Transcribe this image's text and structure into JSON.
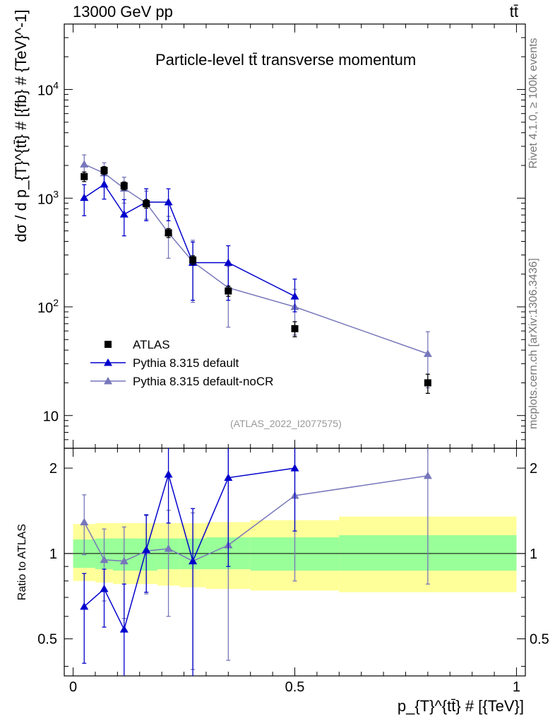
{
  "header": {
    "energy_label": "13000 GeV pp",
    "process_label": "tt̄"
  },
  "side_text": {
    "rivet": "Rivet 4.1.0, ≥ 100k events",
    "mcplots": "mcplots.cern.ch [arXiv:1306.3436]"
  },
  "analysis_id": "(ATLAS_2022_I2077575)",
  "colors": {
    "data": "#000000",
    "pythia_default": "#0000cc",
    "pythia_nocr": "#7777bb",
    "band_inner": "#99ff99",
    "band_outer": "#ffff99"
  },
  "chart_data": [
    {
      "type": "scatter",
      "title": "Particle-level tt̄ transverse momentum",
      "ylabel": "dσ / d p_{T}^{tt̄} # [{fb} # {TeV}^-1]",
      "xlabel": "p_{T}^{tt̄} # [{TeV}]",
      "yscale": "log",
      "ylim": [
        5,
        40000
      ],
      "xlim": [
        -0.02,
        1.02
      ],
      "y_ticks": [
        {
          "value": 10,
          "label": "10"
        },
        {
          "value": 100,
          "label": "10^2"
        },
        {
          "value": 1000,
          "label": "10^3"
        },
        {
          "value": 10000,
          "label": "10^4"
        }
      ],
      "legend": [
        "ATLAS",
        "Pythia 8.315 default",
        "Pythia 8.315 default-noCR"
      ],
      "series": [
        {
          "name": "ATLAS",
          "marker": "square",
          "x": [
            0.025,
            0.07,
            0.115,
            0.165,
            0.215,
            0.27,
            0.35,
            0.5,
            0.8
          ],
          "y": [
            1580,
            1800,
            1300,
            890,
            480,
            270,
            140,
            63,
            20
          ],
          "yerr_low": [
            160,
            150,
            110,
            80,
            45,
            25,
            15,
            10,
            4
          ],
          "yerr_high": [
            160,
            150,
            110,
            80,
            45,
            25,
            15,
            10,
            4
          ]
        },
        {
          "name": "Pythia 8.315 default",
          "marker": "triangle",
          "connect": true,
          "x": [
            0.025,
            0.07,
            0.115,
            0.165,
            0.215,
            0.27,
            0.35,
            0.5
          ],
          "y": [
            1010,
            1340,
            710,
            920,
            920,
            255,
            255,
            125
          ],
          "yerr_low": [
            320,
            360,
            260,
            300,
            300,
            140,
            140,
            35
          ],
          "yerr_high": [
            320,
            360,
            260,
            300,
            300,
            140,
            110,
            55
          ]
        },
        {
          "name": "Pythia 8.315 default-noCR",
          "marker": "triangle",
          "connect": true,
          "x": [
            0.025,
            0.07,
            0.115,
            0.165,
            0.215,
            0.27,
            0.35,
            0.5,
            0.8
          ],
          "y": [
            2050,
            1700,
            1230,
            900,
            480,
            260,
            150,
            100,
            37
          ],
          "yerr_low": [
            450,
            420,
            330,
            260,
            200,
            150,
            85,
            45,
            19
          ],
          "yerr_high": [
            450,
            420,
            330,
            260,
            200,
            150,
            85,
            45,
            22
          ]
        }
      ]
    },
    {
      "type": "scatter",
      "ylabel": "Ratio to ATLAS",
      "yscale": "log",
      "ylim": [
        0.37,
        2.35
      ],
      "xlim": [
        -0.02,
        1.02
      ],
      "y_ticks": [
        {
          "value": 0.5,
          "label": "0.5"
        },
        {
          "value": 1,
          "label": "1"
        },
        {
          "value": 2,
          "label": "2"
        }
      ],
      "x_ticks": [
        {
          "value": 0,
          "label": "0"
        },
        {
          "value": 0.5,
          "label": "0.5"
        },
        {
          "value": 1,
          "label": "1"
        }
      ],
      "bands": {
        "edges": [
          0,
          0.05,
          0.09,
          0.14,
          0.19,
          0.24,
          0.3,
          0.4,
          0.6,
          1.0
        ],
        "inner_low": [
          0.89,
          0.88,
          0.87,
          0.87,
          0.88,
          0.88,
          0.88,
          0.87,
          0.87
        ],
        "inner_high": [
          1.12,
          1.13,
          1.13,
          1.13,
          1.13,
          1.13,
          1.14,
          1.14,
          1.16
        ],
        "outer_low": [
          0.8,
          0.79,
          0.78,
          0.78,
          0.77,
          0.76,
          0.75,
          0.74,
          0.73
        ],
        "outer_high": [
          1.27,
          1.28,
          1.28,
          1.28,
          1.28,
          1.28,
          1.29,
          1.31,
          1.35
        ]
      },
      "series": [
        {
          "name": "Pythia 8.315 default",
          "x": [
            0.025,
            0.07,
            0.115,
            0.165,
            0.215,
            0.27,
            0.35,
            0.5
          ],
          "y": [
            0.65,
            0.75,
            0.54,
            1.03,
            1.9,
            0.94,
            1.85,
            2.0
          ],
          "yerr_low": [
            0.24,
            0.2,
            0.22,
            0.3,
            0.62,
            0.6,
            0.95,
            0.8
          ],
          "yerr_high": [
            0.2,
            0.13,
            0.24,
            0.34,
            0.5,
            0.5,
            0.6,
            0.4
          ]
        },
        {
          "name": "Pythia 8.315 default-noCR",
          "x": [
            0.025,
            0.07,
            0.115,
            0.165,
            0.215,
            0.27,
            0.35,
            0.5,
            0.8
          ],
          "y": [
            1.29,
            0.95,
            0.94,
            1.02,
            1.04,
            0.94,
            1.07,
            1.6,
            1.88
          ],
          "yerr_low": [
            0.3,
            0.27,
            0.35,
            0.3,
            0.44,
            0.55,
            0.65,
            0.8,
            1.1
          ],
          "yerr_high": [
            0.32,
            0.27,
            0.3,
            0.34,
            0.38,
            0.45,
            1.3,
            0.8,
            0.6
          ]
        }
      ]
    }
  ]
}
